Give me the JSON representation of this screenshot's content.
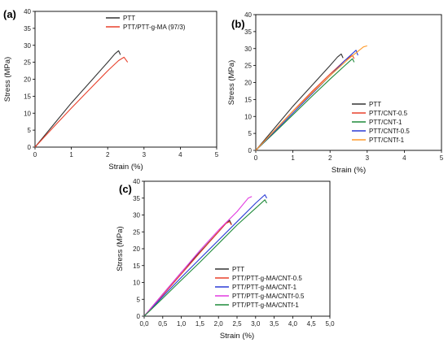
{
  "chart_data": [
    {
      "panel": "(a)",
      "type": "line",
      "xlabel": "Strain (%)",
      "ylabel": "Stress (MPa)",
      "xlim": [
        0,
        5
      ],
      "ylim": [
        0,
        40
      ],
      "xticks": [
        "0",
        "1",
        "2",
        "3",
        "4",
        "5"
      ],
      "yticks": [
        "0",
        "5",
        "10",
        "15",
        "20",
        "25",
        "30",
        "35",
        "40"
      ],
      "legend_position": "top-right",
      "series": [
        {
          "name": "PTT",
          "color": "#333333",
          "points": [
            [
              0,
              0
            ],
            [
              0.5,
              6.5
            ],
            [
              1.0,
              13.0
            ],
            [
              1.5,
              19.0
            ],
            [
              2.0,
              25.0
            ],
            [
              2.2,
              27.5
            ],
            [
              2.3,
              28.4
            ],
            [
              2.35,
              27.2
            ]
          ]
        },
        {
          "name": "PTT/PTT-g-MA (97/3)",
          "color": "#e8412c",
          "points": [
            [
              0,
              0
            ],
            [
              0.5,
              5.8
            ],
            [
              1.0,
              11.5
            ],
            [
              1.5,
              17.0
            ],
            [
              2.0,
              22.5
            ],
            [
              2.3,
              25.5
            ],
            [
              2.45,
              26.5
            ],
            [
              2.55,
              25.0
            ]
          ]
        }
      ]
    },
    {
      "panel": "(b)",
      "type": "line",
      "xlabel": "Strain (%)",
      "ylabel": "Stress (MPa)",
      "xlim": [
        0,
        5
      ],
      "ylim": [
        0,
        40
      ],
      "xticks": [
        "0",
        "1",
        "2",
        "3",
        "4",
        "5"
      ],
      "yticks": [
        "0",
        "5",
        "10",
        "15",
        "20",
        "25",
        "30",
        "35",
        "40"
      ],
      "legend_position": "bottom-right",
      "series": [
        {
          "name": "PTT",
          "color": "#333333",
          "points": [
            [
              0,
              0
            ],
            [
              0.5,
              6.5
            ],
            [
              1.0,
              13.0
            ],
            [
              1.5,
              19.0
            ],
            [
              2.0,
              25.0
            ],
            [
              2.2,
              27.5
            ],
            [
              2.3,
              28.4
            ],
            [
              2.35,
              27.2
            ]
          ]
        },
        {
          "name": "PTT/CNT-0.5",
          "color": "#e8412c",
          "points": [
            [
              0,
              0
            ],
            [
              0.5,
              5.8
            ],
            [
              1.0,
              11.6
            ],
            [
              1.5,
              17.2
            ],
            [
              2.0,
              22.5
            ],
            [
              2.4,
              26.5
            ],
            [
              2.6,
              28.0
            ],
            [
              2.65,
              27.0
            ]
          ]
        },
        {
          "name": "PTT/CNT-1",
          "color": "#1f8a3a",
          "points": [
            [
              0,
              0
            ],
            [
              0.5,
              5.2
            ],
            [
              1.0,
              10.5
            ],
            [
              1.5,
              15.8
            ],
            [
              2.0,
              21.0
            ],
            [
              2.4,
              25.0
            ],
            [
              2.6,
              27.0
            ],
            [
              2.65,
              26.0
            ]
          ]
        },
        {
          "name": "PTT/CNTf-0.5",
          "color": "#2b3bd6",
          "points": [
            [
              0,
              0
            ],
            [
              0.5,
              5.5
            ],
            [
              1.0,
              11.0
            ],
            [
              1.5,
              16.5
            ],
            [
              2.0,
              22.0
            ],
            [
              2.4,
              26.5
            ],
            [
              2.7,
              29.5
            ],
            [
              2.75,
              28.0
            ]
          ]
        },
        {
          "name": "PTT/CNTf-1",
          "color": "#ff9a2a",
          "points": [
            [
              0,
              0
            ],
            [
              0.5,
              5.8
            ],
            [
              1.0,
              11.5
            ],
            [
              1.5,
              16.8
            ],
            [
              2.0,
              22.0
            ],
            [
              2.5,
              27.0
            ],
            [
              2.9,
              30.5
            ],
            [
              3.0,
              30.8
            ]
          ]
        }
      ]
    },
    {
      "panel": "(c)",
      "type": "line",
      "xlabel": "Strain (%)",
      "ylabel": "Stress (MPa)",
      "xlim": [
        0,
        5
      ],
      "ylim": [
        0,
        40
      ],
      "xticks": [
        "0,0",
        "0,5",
        "1,0",
        "1,5",
        "2,0",
        "2,5",
        "3,0",
        "3,5",
        "4,0",
        "4,5",
        "5,0"
      ],
      "yticks": [
        "0",
        "5",
        "10",
        "15",
        "20",
        "25",
        "30",
        "35",
        "40"
      ],
      "legend_position": "bottom-right",
      "series": [
        {
          "name": "PTT",
          "color": "#333333",
          "points": [
            [
              0,
              0
            ],
            [
              0.5,
              6.5
            ],
            [
              1.0,
              13.0
            ],
            [
              1.5,
              19.0
            ],
            [
              2.0,
              25.0
            ],
            [
              2.2,
              27.5
            ],
            [
              2.3,
              28.4
            ],
            [
              2.35,
              27.2
            ]
          ]
        },
        {
          "name": "PTT/PTT-g-MA/CNT-0.5",
          "color": "#e8412c",
          "points": [
            [
              0,
              0
            ],
            [
              0.5,
              6.2
            ],
            [
              1.0,
              12.5
            ],
            [
              1.5,
              18.8
            ],
            [
              2.0,
              25.0
            ],
            [
              2.2,
              27.5
            ],
            [
              2.3,
              28.0
            ],
            [
              2.35,
              27.0
            ]
          ]
        },
        {
          "name": "PTT/PTT-g-MA/CNT-1",
          "color": "#2b3bd6",
          "points": [
            [
              0,
              0
            ],
            [
              0.5,
              5.8
            ],
            [
              1.0,
              11.5
            ],
            [
              1.5,
              17.0
            ],
            [
              2.0,
              22.5
            ],
            [
              2.5,
              28.0
            ],
            [
              3.0,
              33.5
            ],
            [
              3.25,
              36.0
            ],
            [
              3.3,
              35.0
            ]
          ]
        },
        {
          "name": "PTT/PTT-g-MA/CNTf-0.5",
          "color": "#e23ae0",
          "points": [
            [
              0,
              0
            ],
            [
              0.5,
              6.5
            ],
            [
              1.0,
              13.0
            ],
            [
              1.5,
              19.5
            ],
            [
              2.0,
              25.5
            ],
            [
              2.5,
              31.0
            ],
            [
              2.8,
              35.0
            ],
            [
              2.9,
              35.5
            ]
          ]
        },
        {
          "name": "PTT/PTT-g-MA/CNTf-1",
          "color": "#1f8a3a",
          "points": [
            [
              0,
              0
            ],
            [
              0.5,
              5.3
            ],
            [
              1.0,
              10.7
            ],
            [
              1.5,
              16.0
            ],
            [
              2.0,
              21.5
            ],
            [
              2.5,
              27.0
            ],
            [
              3.0,
              32.0
            ],
            [
              3.25,
              34.5
            ],
            [
              3.3,
              33.5
            ]
          ]
        }
      ]
    }
  ]
}
